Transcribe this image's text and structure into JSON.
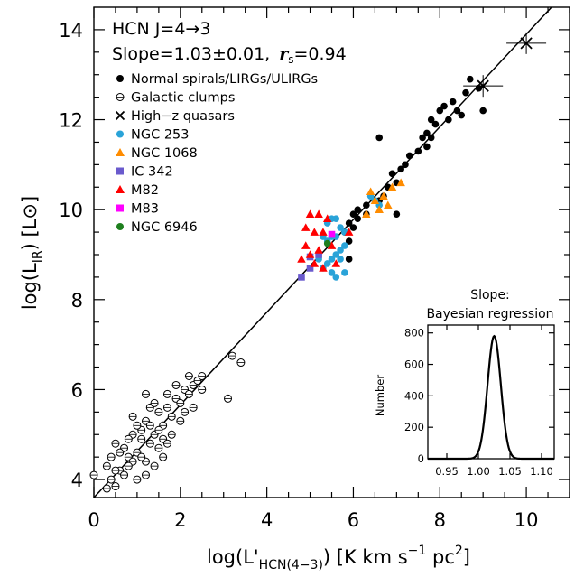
{
  "chart_data": [
    {
      "type": "scatter",
      "annotation_line1": "HCN J=4→3",
      "annotation_line2": "Slope=1.03±0.01,",
      "annotation_rs": "r",
      "annotation_rs_sub": "s",
      "annotation_rs_value": "=0.94",
      "xlabel": "log(L'",
      "xlabel_sub": "HCN(4−3)",
      "xlabel_unit": ") [K km s",
      "xlabel_sup1": "−1",
      "xlabel_unit2": " pc",
      "xlabel_sup2": "2",
      "xlabel_end": "]",
      "ylabel": "log(L",
      "ylabel_sub": "IR",
      "ylabel_unit": ") [L",
      "ylabel_sun": "⊙",
      "ylabel_end": "]",
      "xlim": [
        0,
        11
      ],
      "ylim": [
        3.6,
        14.5
      ],
      "xticks": [
        "0",
        "2",
        "4",
        "6",
        "8",
        "10"
      ],
      "yticks": [
        "4",
        "6",
        "8",
        "10",
        "12",
        "14"
      ],
      "fit_line": {
        "slope": 1.03,
        "intercept": 3.6
      },
      "legend": [
        {
          "label": "Normal spirals/LIRGs/ULIRGs",
          "marker": "filled-circle",
          "color": "#000000"
        },
        {
          "label": "Galactic clumps",
          "marker": "open-circle",
          "color": "#000000"
        },
        {
          "label": "High−z quasars",
          "marker": "cross",
          "color": "#000000"
        },
        {
          "label": "NGC 253",
          "marker": "filled-circle",
          "color": "#2aa3d8"
        },
        {
          "label": "NGC 1068",
          "marker": "triangle",
          "color": "#ff8c00"
        },
        {
          "label": "IC 342",
          "marker": "square",
          "color": "#6a5acd"
        },
        {
          "label": "M82",
          "marker": "triangle",
          "color": "#ff0000"
        },
        {
          "label": "M83",
          "marker": "square",
          "color": "#ff00ff"
        },
        {
          "label": "NGC 6946",
          "marker": "filled-circle",
          "color": "#1e7f1e"
        }
      ],
      "series": [
        {
          "name": "Normal spirals/LIRGs/ULIRGs",
          "points": [
            [
              8.7,
              12.9
            ],
            [
              8.9,
              12.7
            ],
            [
              8.6,
              12.6
            ],
            [
              8.3,
              12.4
            ],
            [
              8.1,
              12.3
            ],
            [
              8.4,
              12.2
            ],
            [
              8.0,
              12.2
            ],
            [
              8.5,
              12.1
            ],
            [
              9.0,
              12.2
            ],
            [
              8.2,
              12.0
            ],
            [
              7.8,
              12.0
            ],
            [
              7.9,
              11.9
            ],
            [
              7.7,
              11.7
            ],
            [
              7.6,
              11.6
            ],
            [
              7.8,
              11.6
            ],
            [
              7.7,
              11.4
            ],
            [
              7.5,
              11.3
            ],
            [
              7.3,
              11.2
            ],
            [
              7.2,
              11.0
            ],
            [
              7.1,
              10.9
            ],
            [
              6.9,
              10.8
            ],
            [
              7.0,
              10.6
            ],
            [
              6.8,
              10.5
            ],
            [
              6.6,
              11.6
            ],
            [
              6.5,
              10.2
            ],
            [
              6.6,
              10.2
            ],
            [
              6.3,
              10.1
            ],
            [
              6.1,
              10.0
            ],
            [
              6.0,
              9.9
            ],
            [
              6.3,
              9.9
            ],
            [
              6.1,
              9.8
            ],
            [
              5.9,
              9.7
            ],
            [
              6.0,
              9.6
            ],
            [
              5.8,
              9.5
            ],
            [
              5.9,
              9.3
            ],
            [
              5.9,
              8.9
            ],
            [
              7.0,
              9.9
            ],
            [
              6.7,
              10.3
            ]
          ]
        },
        {
          "name": "NGC 253",
          "points": [
            [
              5.4,
              9.7
            ],
            [
              5.5,
              9.8
            ],
            [
              5.6,
              9.8
            ],
            [
              5.7,
              9.6
            ],
            [
              5.8,
              9.5
            ],
            [
              5.6,
              9.4
            ],
            [
              5.5,
              9.4
            ],
            [
              5.4,
              9.3
            ],
            [
              5.3,
              9.4
            ],
            [
              5.8,
              9.2
            ],
            [
              5.7,
              9.1
            ],
            [
              5.6,
              9.0
            ],
            [
              5.5,
              8.9
            ],
            [
              5.4,
              8.8
            ],
            [
              5.7,
              8.9
            ],
            [
              5.8,
              8.6
            ],
            [
              5.5,
              8.6
            ],
            [
              5.3,
              8.7
            ],
            [
              5.6,
              8.5
            ],
            [
              5.2,
              8.9
            ],
            [
              6.5,
              10.2
            ],
            [
              6.6,
              10.1
            ],
            [
              6.4,
              10.3
            ]
          ]
        },
        {
          "name": "NGC 1068",
          "points": [
            [
              6.4,
              10.4
            ],
            [
              6.5,
              10.2
            ],
            [
              6.7,
              10.3
            ],
            [
              6.8,
              10.1
            ],
            [
              6.6,
              10.0
            ],
            [
              6.3,
              9.9
            ],
            [
              6.9,
              10.5
            ],
            [
              7.1,
              10.6
            ]
          ]
        },
        {
          "name": "IC 342",
          "points": [
            [
              4.8,
              8.5
            ],
            [
              5.0,
              8.7
            ],
            [
              5.0,
              8.95
            ],
            [
              5.2,
              9.0
            ]
          ]
        },
        {
          "name": "M82",
          "points": [
            [
              5.0,
              9.9
            ],
            [
              5.2,
              9.9
            ],
            [
              5.4,
              9.8
            ],
            [
              4.9,
              9.6
            ],
            [
              5.1,
              9.5
            ],
            [
              5.3,
              9.5
            ],
            [
              5.5,
              9.2
            ],
            [
              5.2,
              9.1
            ],
            [
              4.9,
              9.2
            ],
            [
              5.0,
              9.0
            ],
            [
              4.8,
              8.9
            ],
            [
              5.1,
              8.8
            ],
            [
              5.3,
              8.7
            ],
            [
              5.6,
              8.8
            ],
            [
              5.9,
              9.5
            ]
          ]
        },
        {
          "name": "M83",
          "points": [
            [
              5.5,
              9.45
            ]
          ]
        },
        {
          "name": "NGC 6946",
          "points": [
            [
              5.4,
              9.25
            ]
          ]
        },
        {
          "name": "High−z quasars",
          "points": [
            [
              10.0,
              13.7
            ],
            [
              9.0,
              12.75
            ]
          ]
        },
        {
          "name": "Galactic clumps",
          "points": [
            [
              0.0,
              4.1
            ],
            [
              0.4,
              4.5
            ],
            [
              0.5,
              4.8
            ],
            [
              0.6,
              4.2
            ],
            [
              0.3,
              4.3
            ],
            [
              0.8,
              4.5
            ],
            [
              0.9,
              5.0
            ],
            [
              0.7,
              4.7
            ],
            [
              1.0,
              4.6
            ],
            [
              1.1,
              5.1
            ],
            [
              1.2,
              5.3
            ],
            [
              1.3,
              4.8
            ],
            [
              1.4,
              5.0
            ],
            [
              1.5,
              5.5
            ],
            [
              1.6,
              5.2
            ],
            [
              1.7,
              5.6
            ],
            [
              1.0,
              5.2
            ],
            [
              1.2,
              4.4
            ],
            [
              0.8,
              4.9
            ],
            [
              1.4,
              4.3
            ],
            [
              1.6,
              4.9
            ],
            [
              1.8,
              5.4
            ],
            [
              1.9,
              5.8
            ],
            [
              2.0,
              5.7
            ],
            [
              2.1,
              6.0
            ],
            [
              2.2,
              5.9
            ],
            [
              2.3,
              6.1
            ],
            [
              2.4,
              6.2
            ],
            [
              2.5,
              6.3
            ],
            [
              1.3,
              5.6
            ],
            [
              1.5,
              4.7
            ],
            [
              1.1,
              4.5
            ],
            [
              0.9,
              4.4
            ],
            [
              0.5,
              4.2
            ],
            [
              0.6,
              4.6
            ],
            [
              0.7,
              4.1
            ],
            [
              1.2,
              5.9
            ],
            [
              1.7,
              5.9
            ],
            [
              2.0,
              5.3
            ],
            [
              0.9,
              5.4
            ],
            [
              1.1,
              4.9
            ],
            [
              1.3,
              5.2
            ],
            [
              1.5,
              5.1
            ],
            [
              1.9,
              6.1
            ],
            [
              2.3,
              5.6
            ],
            [
              1.6,
              4.5
            ],
            [
              1.0,
              4.0
            ],
            [
              0.5,
              3.85
            ],
            [
              0.3,
              3.8
            ],
            [
              1.4,
              5.7
            ],
            [
              1.8,
              5.0
            ],
            [
              2.1,
              5.5
            ],
            [
              0.8,
              4.3
            ],
            [
              3.2,
              6.75
            ],
            [
              3.4,
              6.6
            ],
            [
              3.1,
              5.8
            ],
            [
              2.5,
              6.0
            ],
            [
              0.4,
              4.0
            ],
            [
              1.2,
              4.1
            ],
            [
              2.2,
              6.3
            ],
            [
              1.7,
              4.8
            ]
          ]
        }
      ]
    },
    {
      "type": "line",
      "title_line1": "Slope:",
      "title_line2": "Bayesian regression",
      "ylabel": "Number",
      "xlim": [
        0.92,
        1.12
      ],
      "ylim": [
        0,
        850
      ],
      "xticks": [
        "0.95",
        "1.00",
        "1.05",
        "1.10"
      ],
      "yticks": [
        "0",
        "200",
        "400",
        "600",
        "800"
      ],
      "peak_x": 1.025,
      "peak_y": 780,
      "sigma": 0.0105
    }
  ]
}
